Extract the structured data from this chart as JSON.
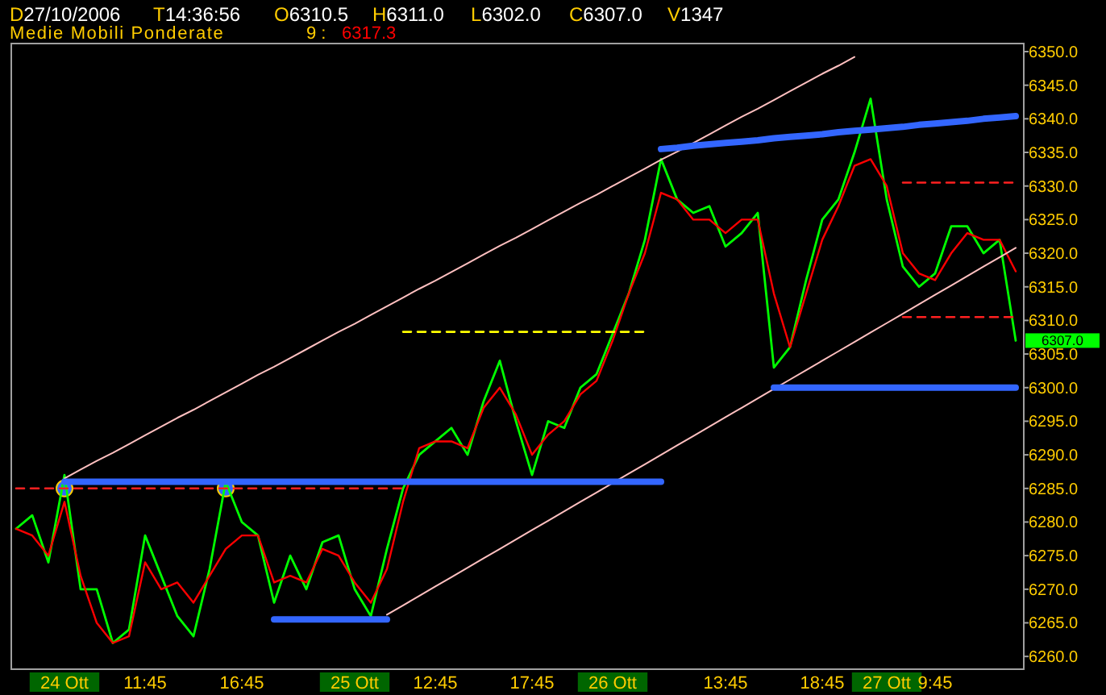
{
  "chart_data": {
    "type": "line",
    "title": "D27/10/2006 T14:36:56 O6310.5 H6311.0 L6302.0 C6307.0 V1347",
    "legend_title": "Medie Mobili Ponderate",
    "legend": "top left",
    "grid": false,
    "ylim": [
      6258.1,
      6351.2
    ],
    "categories": [
      null,
      null,
      null,
      "24 Ott",
      null,
      null,
      null,
      null,
      "11:45",
      null,
      null,
      null,
      null,
      null,
      "16:45",
      null,
      null,
      null,
      null,
      null,
      null,
      "25 Ott",
      null,
      null,
      null,
      null,
      "12:45",
      null,
      null,
      null,
      null,
      null,
      "17:45",
      null,
      null,
      null,
      null,
      "26 Ott",
      null,
      null,
      null,
      null,
      null,
      null,
      "13:45",
      null,
      null,
      null,
      null,
      null,
      "18:45",
      null,
      null,
      null,
      "27 Ott",
      null,
      null,
      "9:45",
      null,
      null,
      null,
      null,
      null
    ],
    "yticks": [
      {
        "value": 6260,
        "label": "6260.0"
      },
      {
        "value": 6265,
        "label": "6265.0"
      },
      {
        "value": 6270,
        "label": "6270.0"
      },
      {
        "value": 6275,
        "label": "6275.0"
      },
      {
        "value": 6280,
        "label": "6280.0"
      },
      {
        "value": 6285,
        "label": "6285.0"
      },
      {
        "value": 6290,
        "label": "6290.0"
      },
      {
        "value": 6295,
        "label": "6295.0"
      },
      {
        "value": 6300,
        "label": "6300.0"
      },
      {
        "value": 6305,
        "label": "6305.0"
      },
      {
        "value": 6310,
        "label": "6310.0"
      },
      {
        "value": 6315,
        "label": "6315.0"
      },
      {
        "value": 6320,
        "label": "6320.0"
      },
      {
        "value": 6325,
        "label": "6325.0"
      },
      {
        "value": 6330,
        "label": "6330.0"
      },
      {
        "value": 6335,
        "label": "6335.0"
      },
      {
        "value": 6340,
        "label": "6340.0"
      },
      {
        "value": 6345,
        "label": "6345.0"
      },
      {
        "value": 6350,
        "label": "6350.0"
      }
    ],
    "annotations": [
      "6317.3",
      "6307.0"
    ],
    "series": [
      {
        "color": "#00ff00",
        "values": [
          6279,
          6281,
          6274,
          6287,
          6270,
          6270,
          6262,
          6264,
          6278,
          6272,
          6266,
          6263,
          6273,
          6286,
          6280,
          6278,
          6268,
          6275,
          6270,
          6277,
          6278,
          6270,
          6266,
          6276,
          6285,
          6290,
          6292,
          6294,
          6290,
          6298,
          6304,
          6295,
          6287,
          6295,
          6294,
          6300,
          6302,
          6308,
          6314,
          6322,
          6334,
          6328,
          6326,
          6327,
          6321,
          6323,
          6326,
          6303,
          6306,
          6316,
          6325,
          6328,
          6335,
          6343,
          6328,
          6318,
          6315,
          6317,
          6324,
          6324,
          6320,
          6322,
          6307
        ]
      },
      {
        "name": "9 :",
        "color": "#ff0000",
        "values": [
          6279,
          6278,
          6275,
          6283,
          6272,
          6265,
          6262,
          6263,
          6274,
          6270,
          6271,
          6268,
          6272,
          6276,
          6278,
          6278,
          6271,
          6272,
          6271,
          6276,
          6275,
          6271,
          6268,
          6273,
          6283,
          6291,
          6292,
          6292,
          6291,
          6297,
          6300,
          6296,
          6290,
          6293,
          6295,
          6299,
          6301,
          6307,
          6314,
          6320,
          6329,
          6328,
          6325,
          6325,
          6323,
          6325,
          6325,
          6314,
          6306,
          6314,
          6322,
          6327,
          6333,
          6334,
          6330,
          6320,
          6317,
          6316,
          6320,
          6323,
          6322,
          6322,
          6317.3
        ]
      },
      {
        "color": "#ffc0c0",
        "values": [
          null,
          null,
          null,
          6286.5,
          6287.8,
          6289.1,
          6290.3,
          6291.6,
          6292.9,
          6294.2,
          6295.5,
          6296.7,
          6298.0,
          6299.3,
          6300.6,
          6301.9,
          6303.1,
          6304.4,
          6305.7,
          6307.0,
          6308.3,
          6309.5,
          6310.8,
          6312.1,
          6313.4,
          6314.7,
          6315.9,
          6317.2,
          6318.5,
          6319.8,
          6321.1,
          6322.3,
          6323.6,
          6324.9,
          6326.2,
          6327.5,
          6328.7,
          6330.0,
          6331.3,
          6332.6,
          6333.9,
          6335.1,
          6336.4,
          6337.7,
          6339.0,
          6340.3,
          6341.5,
          6342.8,
          6344.1,
          6345.4,
          6346.7,
          6347.9,
          6349.2,
          null,
          null,
          null,
          null,
          null,
          null,
          null,
          null,
          null,
          null
        ]
      },
      {
        "color": "#ffc0c0",
        "values": [
          null,
          null,
          null,
          null,
          null,
          null,
          null,
          null,
          null,
          null,
          null,
          null,
          null,
          null,
          null,
          null,
          null,
          null,
          null,
          null,
          null,
          null,
          null,
          6266.2,
          6267.6,
          6269.0,
          6270.4,
          6271.8,
          6273.2,
          6274.6,
          6276.0,
          6277.4,
          6278.8,
          6280.2,
          6281.6,
          6283.0,
          6284.4,
          6285.8,
          6287.2,
          6288.6,
          6290.0,
          6291.4,
          6292.8,
          6294.2,
          6295.6,
          6297.0,
          6298.4,
          6299.8,
          6301.2,
          6302.6,
          6304.0,
          6305.4,
          6306.8,
          6308.2,
          6309.6,
          6311.0,
          6312.4,
          6313.8,
          6315.2,
          6316.6,
          6318.0,
          6319.4,
          6320.8
        ]
      },
      {
        "color": "#3366ff",
        "values": [
          null,
          null,
          null,
          6286,
          6286,
          6286,
          6286,
          6286,
          6286,
          6286,
          6286,
          6286,
          6286,
          6286,
          6286,
          6286,
          6286,
          6286,
          6286,
          6286,
          6286,
          6286,
          6286,
          6286,
          6286,
          6286,
          6286,
          6286,
          6286,
          6286,
          6286,
          6286,
          6286,
          6286,
          6286,
          6286,
          6286,
          6286,
          6286,
          6286,
          6286,
          null,
          null,
          null,
          null,
          null,
          null,
          null,
          null,
          null,
          null,
          null,
          null,
          null,
          null,
          null,
          null,
          null,
          null,
          null,
          null,
          null,
          null
        ]
      },
      {
        "color": "#3366ff",
        "values": [
          null,
          null,
          null,
          null,
          null,
          null,
          null,
          null,
          null,
          null,
          null,
          null,
          null,
          null,
          null,
          null,
          6265.5,
          6265.5,
          6265.5,
          6265.5,
          6265.5,
          6265.5,
          6265.5,
          6265.5,
          null,
          null,
          null,
          null,
          null,
          null,
          null,
          null,
          null,
          null,
          null,
          null,
          null,
          null,
          null,
          null,
          null,
          null,
          null,
          null,
          null,
          null,
          null,
          null,
          null,
          null,
          null,
          null,
          null,
          null,
          null,
          null,
          null,
          null,
          null,
          null,
          null,
          null,
          null
        ]
      },
      {
        "color": "#3366ff",
        "values": [
          null,
          null,
          null,
          null,
          null,
          null,
          null,
          null,
          null,
          null,
          null,
          null,
          null,
          null,
          null,
          null,
          null,
          null,
          null,
          null,
          null,
          null,
          null,
          null,
          null,
          null,
          null,
          null,
          null,
          null,
          null,
          null,
          null,
          null,
          null,
          null,
          null,
          null,
          null,
          null,
          null,
          null,
          null,
          null,
          null,
          null,
          null,
          6300,
          6300,
          6300,
          6300,
          6300,
          6300,
          6300,
          6300,
          6300,
          6300,
          6300,
          6300,
          6300,
          6300,
          6300,
          6300
        ]
      },
      {
        "color": "#3366ff",
        "values": [
          null,
          null,
          null,
          null,
          null,
          null,
          null,
          null,
          null,
          null,
          null,
          null,
          null,
          null,
          null,
          null,
          null,
          null,
          null,
          null,
          null,
          null,
          null,
          null,
          null,
          null,
          null,
          null,
          null,
          null,
          null,
          null,
          null,
          null,
          null,
          null,
          null,
          null,
          null,
          null,
          6335.5,
          6335.7,
          6336.0,
          6336.2,
          6336.4,
          6336.6,
          6336.8,
          6337.1,
          6337.3,
          6337.5,
          6337.7,
          6338.0,
          6338.2,
          6338.4,
          6338.6,
          6338.8,
          6339.1,
          6339.3,
          6339.5,
          6339.7,
          6340.0,
          6340.2,
          6340.4
        ]
      },
      {
        "color": "#ff2020",
        "line_style": "dashed",
        "values": [
          6285,
          6285,
          6285,
          6285,
          6285,
          6285,
          6285,
          6285,
          6285,
          6285,
          6285,
          6285,
          6285,
          6285,
          6285,
          6285,
          6285,
          6285,
          6285,
          6285,
          6285,
          6285,
          6285,
          6285,
          6285,
          null,
          null,
          null,
          null,
          null,
          null,
          null,
          null,
          null,
          null,
          null,
          null,
          null,
          null,
          null,
          null,
          null,
          null,
          null,
          null,
          null,
          null,
          null,
          null,
          null,
          null,
          null,
          null,
          null,
          null,
          null,
          null,
          null,
          null,
          null,
          null,
          null,
          null
        ]
      },
      {
        "color": "#ffff00",
        "line_style": "dashed",
        "values": [
          null,
          null,
          null,
          null,
          null,
          null,
          null,
          null,
          null,
          null,
          null,
          null,
          null,
          null,
          null,
          null,
          null,
          null,
          null,
          null,
          null,
          null,
          null,
          null,
          6308.3,
          6308.3,
          6308.3,
          6308.3,
          6308.3,
          6308.3,
          6308.3,
          6308.3,
          6308.3,
          6308.3,
          6308.3,
          6308.3,
          6308.3,
          6308.3,
          6308.3,
          6308.3,
          null,
          null,
          null,
          null,
          null,
          null,
          null,
          null,
          null,
          null,
          null,
          null,
          null,
          null,
          null,
          null,
          null,
          null,
          null,
          null,
          null,
          null,
          null
        ]
      },
      {
        "color": "#ff2020",
        "line_style": "dashed",
        "values": [
          null,
          null,
          null,
          null,
          null,
          null,
          null,
          null,
          null,
          null,
          null,
          null,
          null,
          null,
          null,
          null,
          null,
          null,
          null,
          null,
          null,
          null,
          null,
          null,
          null,
          null,
          null,
          null,
          null,
          null,
          null,
          null,
          null,
          null,
          null,
          null,
          null,
          null,
          null,
          null,
          null,
          null,
          null,
          null,
          null,
          null,
          null,
          null,
          null,
          null,
          null,
          null,
          null,
          null,
          null,
          6330.5,
          6330.5,
          6330.5,
          6330.5,
          6330.5,
          6330.5,
          6330.5,
          6330.5
        ]
      },
      {
        "color": "#ff2020",
        "line_style": "dashed",
        "values": [
          null,
          null,
          null,
          null,
          null,
          null,
          null,
          null,
          null,
          null,
          null,
          null,
          null,
          null,
          null,
          null,
          null,
          null,
          null,
          null,
          null,
          null,
          null,
          null,
          null,
          null,
          null,
          null,
          null,
          null,
          null,
          null,
          null,
          null,
          null,
          null,
          null,
          null,
          null,
          null,
          null,
          null,
          null,
          null,
          null,
          null,
          null,
          null,
          null,
          null,
          null,
          null,
          null,
          null,
          null,
          6310.5,
          6310.5,
          6310.5,
          6310.5,
          6310.5,
          6310.5,
          6310.5,
          6310.5
        ]
      },
      {
        "type": "scatter",
        "marker": "circle",
        "color": "#3366ff",
        "values": [
          null,
          null,
          null,
          6285,
          null,
          null,
          null,
          null,
          null,
          null,
          null,
          null,
          null,
          6285,
          null,
          null,
          null,
          null,
          null,
          null,
          null,
          null,
          null,
          null,
          null,
          null,
          null,
          null,
          null,
          null,
          null,
          null,
          null,
          null,
          null,
          null,
          null,
          null,
          null,
          null,
          null,
          null,
          null,
          null,
          null,
          null,
          null,
          null,
          null,
          null,
          null,
          null,
          null,
          null,
          null,
          null,
          null,
          null,
          null,
          null,
          null,
          null,
          null
        ]
      }
    ]
  }
}
